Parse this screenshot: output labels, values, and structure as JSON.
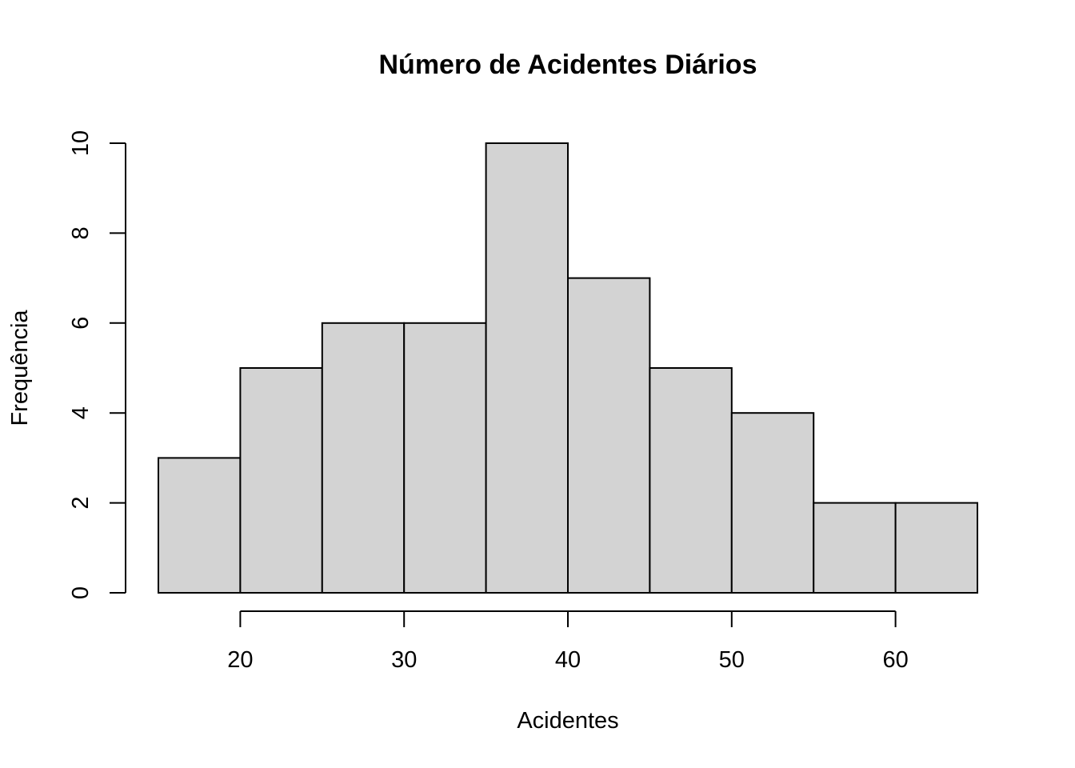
{
  "chart_data": {
    "type": "bar",
    "subtype": "histogram",
    "title": "Número de Acidentes Diários",
    "xlabel": "Acidentes",
    "ylabel": "Frequência",
    "bins": [
      {
        "from": 15,
        "to": 20,
        "count": 3
      },
      {
        "from": 20,
        "to": 25,
        "count": 5
      },
      {
        "from": 25,
        "to": 30,
        "count": 6
      },
      {
        "from": 30,
        "to": 35,
        "count": 6
      },
      {
        "from": 35,
        "to": 40,
        "count": 10
      },
      {
        "from": 40,
        "to": 45,
        "count": 7
      },
      {
        "from": 45,
        "to": 50,
        "count": 5
      },
      {
        "from": 50,
        "to": 55,
        "count": 4
      },
      {
        "from": 55,
        "to": 60,
        "count": 2
      },
      {
        "from": 60,
        "to": 65,
        "count": 2
      }
    ],
    "x_ticks": [
      "20",
      "30",
      "40",
      "50",
      "60"
    ],
    "y_ticks": [
      "0",
      "2",
      "4",
      "6",
      "8",
      "10"
    ],
    "xlim": [
      15,
      65
    ],
    "ylim": [
      0,
      10
    ],
    "grid": false,
    "legend": "none",
    "bar_color": "#d3d3d3",
    "border_color": "#000000"
  }
}
